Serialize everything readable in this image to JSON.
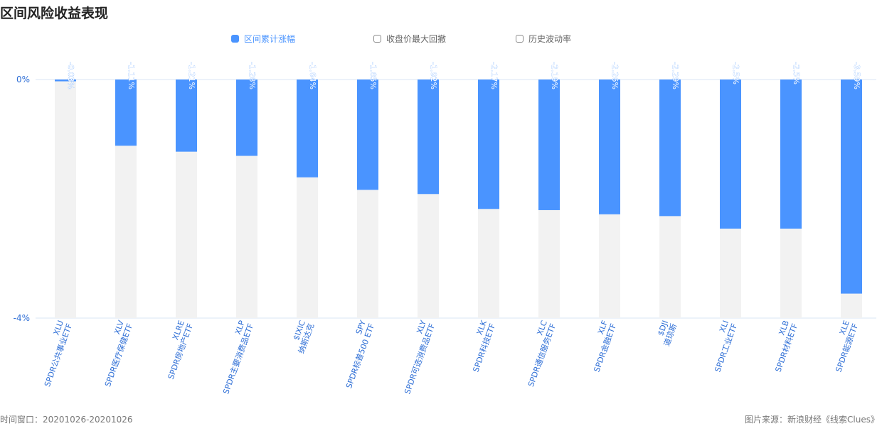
{
  "title": "区间风险收益表现",
  "legend": {
    "items": [
      {
        "label": "区间累计涨幅",
        "active": true
      },
      {
        "label": "收盘价最大回撤",
        "active": false
      },
      {
        "label": "历史波动率",
        "active": false
      }
    ]
  },
  "footer": {
    "time_window": "时间窗口：20201026-20201026",
    "source": "图片来源：新浪财经《线索Clues》"
  },
  "colors": {
    "bar": "#4a94ff",
    "background_bar": "#f2f2f2",
    "axis_label": "#2f6fd6",
    "value_label": "#ffffff",
    "axis_line": "#d8e6f5"
  },
  "chart_data": {
    "type": "bar",
    "y_ticks": [
      "0%",
      "-4%"
    ],
    "ylim": [
      -4,
      0
    ],
    "categories": [
      {
        "code": "XLU",
        "name": "SPDR公共事业ETF"
      },
      {
        "code": "XLV",
        "name": "SPDR医疗保健ETF"
      },
      {
        "code": "XLRE",
        "name": "SPDR房地产ETF"
      },
      {
        "code": "XLP",
        "name": "SPDR主要消费品ETF"
      },
      {
        "code": "$IXIC",
        "name": "纳斯达克"
      },
      {
        "code": "SPY",
        "name": "SPDR标普500 ETF"
      },
      {
        "code": "XLY",
        "name": "SPDR可选消费品ETF"
      },
      {
        "code": "XLK",
        "name": "SPDR科技ETF"
      },
      {
        "code": "XLC",
        "name": "SPDR通信服务ETF"
      },
      {
        "code": "XLF",
        "name": "SPDR金融ETF"
      },
      {
        "code": "$DJI",
        "name": "道琼斯"
      },
      {
        "code": "XLI",
        "name": "SPDR工业ETF"
      },
      {
        "code": "XLB",
        "name": "SPDR材料ETF"
      },
      {
        "code": "XLE",
        "name": "SPDR能源ETF"
      }
    ],
    "values": [
      -0.03,
      -1.11,
      -1.21,
      -1.28,
      -1.64,
      -1.85,
      -1.92,
      -2.17,
      -2.19,
      -2.26,
      -2.29,
      -2.5,
      -2.5,
      -3.59
    ],
    "value_labels": [
      "-0.03%",
      "-1.11%",
      "-1.21%",
      "-1.28%",
      "-1.64%",
      "-1.85%",
      "-1.92%",
      "-2.17%",
      "-2.19%",
      "-2.26%",
      "-2.29%",
      "-2.5%",
      "-2.5%",
      "-3.59%"
    ]
  }
}
